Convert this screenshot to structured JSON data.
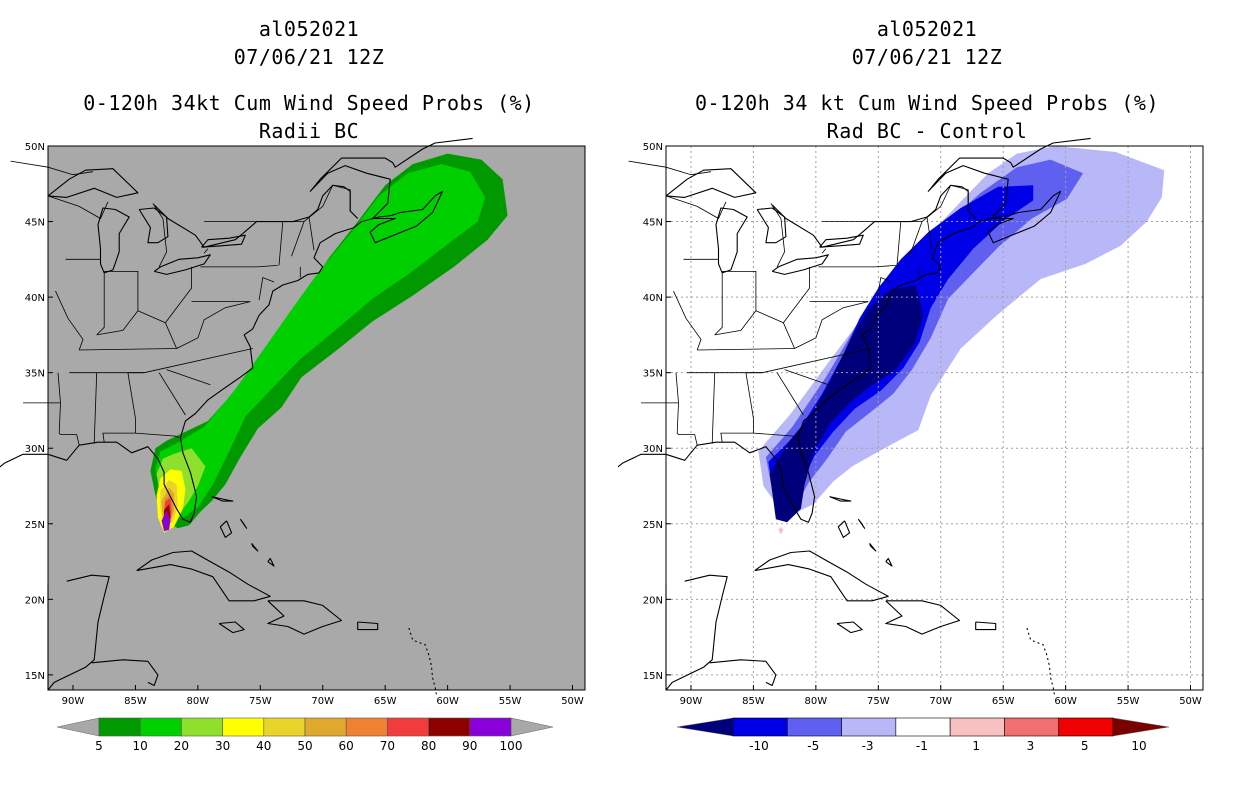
{
  "panels": [
    {
      "storm_id": "al052021",
      "datetime": "07/06/21 12Z",
      "title": "0-120h 34kt Cum Wind Speed Probs (%)",
      "subtitle": "Radii BC",
      "background": "#a9a9a9",
      "colorbar": {
        "labels": [
          "5",
          "10",
          "20",
          "30",
          "40",
          "50",
          "60",
          "70",
          "80",
          "90",
          "100"
        ],
        "colors": [
          "#009a00",
          "#00d000",
          "#8ee02c",
          "#ffff00",
          "#e8d42a",
          "#e0a82c",
          "#ee8232",
          "#f03c3c",
          "#8c0000",
          "#8a00d8"
        ],
        "end_color": "#a8a8a8"
      }
    },
    {
      "storm_id": "al052021",
      "datetime": "07/06/21 12Z",
      "title": "0-120h 34 kt Cum Wind Speed Probs (%)",
      "subtitle": "Rad BC - Control",
      "background": "#ffffff",
      "colorbar": {
        "labels": [
          "-10",
          "-5",
          "-3",
          "-1",
          "1",
          "3",
          "5",
          "10"
        ],
        "colors": [
          "#0000e8",
          "#6060f0",
          "#b8b8f8",
          "#ffffff",
          "#f8c0c0",
          "#f07070",
          "#f00000"
        ],
        "end_left_color": "#00007a",
        "end_right_color": "#7a0000"
      }
    }
  ],
  "map": {
    "lat_labels": [
      "50N",
      "45N",
      "40N",
      "35N",
      "30N",
      "25N",
      "20N",
      "15N"
    ],
    "lon_labels": [
      "90W",
      "85W",
      "80W",
      "75W",
      "70W",
      "65W",
      "60W",
      "55W",
      "50W"
    ]
  }
}
